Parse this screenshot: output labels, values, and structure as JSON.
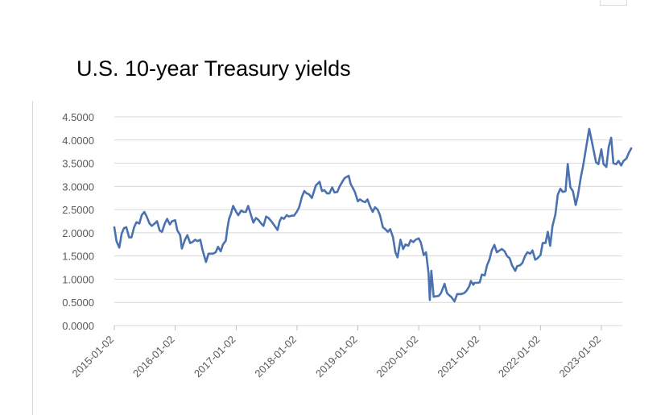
{
  "chart_data": {
    "type": "line",
    "title": "U.S. 10-year Treasury yields",
    "xlabel": "",
    "ylabel": "",
    "ylim": [
      0,
      4.5
    ],
    "xlim": [
      "2015-01-02",
      "2023-06-30"
    ],
    "grid": true,
    "legend": "none",
    "y_ticks": [
      "0.0000",
      "0.5000",
      "1.0000",
      "1.5000",
      "2.0000",
      "2.5000",
      "3.0000",
      "3.5000",
      "4.0000",
      "4.5000"
    ],
    "x_ticks": [
      "2015-01-02",
      "2016-01-02",
      "2017-01-02",
      "2018-01-02",
      "2019-01-02",
      "2020-01-02",
      "2021-01-02",
      "2022-01-02",
      "2023-01-02"
    ],
    "series": [
      {
        "color": "#4a72b0",
        "points": [
          [
            "2015-01-02",
            2.12
          ],
          [
            "2015-01-15",
            1.82
          ],
          [
            "2015-02-01",
            1.68
          ],
          [
            "2015-02-15",
            1.98
          ],
          [
            "2015-03-01",
            2.1
          ],
          [
            "2015-03-15",
            2.12
          ],
          [
            "2015-04-01",
            1.9
          ],
          [
            "2015-04-15",
            1.9
          ],
          [
            "2015-05-01",
            2.12
          ],
          [
            "2015-05-15",
            2.23
          ],
          [
            "2015-06-01",
            2.2
          ],
          [
            "2015-06-15",
            2.38
          ],
          [
            "2015-07-01",
            2.45
          ],
          [
            "2015-07-15",
            2.35
          ],
          [
            "2015-08-01",
            2.2
          ],
          [
            "2015-08-15",
            2.15
          ],
          [
            "2015-09-01",
            2.2
          ],
          [
            "2015-09-15",
            2.25
          ],
          [
            "2015-10-01",
            2.05
          ],
          [
            "2015-10-15",
            2.02
          ],
          [
            "2015-11-01",
            2.2
          ],
          [
            "2015-11-15",
            2.3
          ],
          [
            "2015-12-01",
            2.18
          ],
          [
            "2015-12-15",
            2.25
          ],
          [
            "2016-01-02",
            2.27
          ],
          [
            "2016-01-15",
            2.05
          ],
          [
            "2016-02-01",
            1.95
          ],
          [
            "2016-02-11",
            1.66
          ],
          [
            "2016-03-01",
            1.85
          ],
          [
            "2016-03-15",
            1.95
          ],
          [
            "2016-04-01",
            1.78
          ],
          [
            "2016-04-15",
            1.8
          ],
          [
            "2016-05-01",
            1.85
          ],
          [
            "2016-05-15",
            1.82
          ],
          [
            "2016-06-01",
            1.85
          ],
          [
            "2016-06-15",
            1.62
          ],
          [
            "2016-07-05",
            1.37
          ],
          [
            "2016-07-20",
            1.55
          ],
          [
            "2016-08-01",
            1.55
          ],
          [
            "2016-08-15",
            1.55
          ],
          [
            "2016-09-01",
            1.58
          ],
          [
            "2016-09-15",
            1.7
          ],
          [
            "2016-10-01",
            1.6
          ],
          [
            "2016-10-15",
            1.75
          ],
          [
            "2016-11-01",
            1.83
          ],
          [
            "2016-11-09",
            2.07
          ],
          [
            "2016-11-20",
            2.3
          ],
          [
            "2016-12-01",
            2.4
          ],
          [
            "2016-12-15",
            2.58
          ],
          [
            "2017-01-02",
            2.45
          ],
          [
            "2017-01-15",
            2.38
          ],
          [
            "2017-02-01",
            2.48
          ],
          [
            "2017-02-15",
            2.45
          ],
          [
            "2017-03-01",
            2.45
          ],
          [
            "2017-03-15",
            2.58
          ],
          [
            "2017-04-01",
            2.38
          ],
          [
            "2017-04-15",
            2.22
          ],
          [
            "2017-05-01",
            2.32
          ],
          [
            "2017-05-15",
            2.28
          ],
          [
            "2017-06-01",
            2.2
          ],
          [
            "2017-06-15",
            2.15
          ],
          [
            "2017-07-01",
            2.35
          ],
          [
            "2017-07-15",
            2.32
          ],
          [
            "2017-08-01",
            2.25
          ],
          [
            "2017-08-15",
            2.18
          ],
          [
            "2017-09-07",
            2.06
          ],
          [
            "2017-09-20",
            2.25
          ],
          [
            "2017-10-01",
            2.33
          ],
          [
            "2017-10-15",
            2.3
          ],
          [
            "2017-11-01",
            2.38
          ],
          [
            "2017-11-15",
            2.35
          ],
          [
            "2017-12-01",
            2.37
          ],
          [
            "2017-12-15",
            2.37
          ],
          [
            "2018-01-02",
            2.46
          ],
          [
            "2018-01-15",
            2.55
          ],
          [
            "2018-02-01",
            2.78
          ],
          [
            "2018-02-15",
            2.9
          ],
          [
            "2018-03-01",
            2.85
          ],
          [
            "2018-03-15",
            2.83
          ],
          [
            "2018-04-01",
            2.75
          ],
          [
            "2018-04-25",
            3.02
          ],
          [
            "2018-05-17",
            3.1
          ],
          [
            "2018-06-01",
            2.9
          ],
          [
            "2018-06-15",
            2.92
          ],
          [
            "2018-07-01",
            2.85
          ],
          [
            "2018-07-15",
            2.85
          ],
          [
            "2018-08-01",
            2.98
          ],
          [
            "2018-08-15",
            2.87
          ],
          [
            "2018-09-01",
            2.88
          ],
          [
            "2018-09-15",
            3.0
          ],
          [
            "2018-10-01",
            3.1
          ],
          [
            "2018-10-15",
            3.18
          ],
          [
            "2018-11-08",
            3.23
          ],
          [
            "2018-11-20",
            3.05
          ],
          [
            "2018-12-01",
            2.98
          ],
          [
            "2018-12-15",
            2.88
          ],
          [
            "2019-01-02",
            2.68
          ],
          [
            "2019-01-15",
            2.72
          ],
          [
            "2019-02-01",
            2.68
          ],
          [
            "2019-02-15",
            2.66
          ],
          [
            "2019-03-01",
            2.72
          ],
          [
            "2019-03-15",
            2.58
          ],
          [
            "2019-04-01",
            2.45
          ],
          [
            "2019-04-15",
            2.55
          ],
          [
            "2019-05-01",
            2.5
          ],
          [
            "2019-05-15",
            2.38
          ],
          [
            "2019-06-01",
            2.12
          ],
          [
            "2019-06-15",
            2.08
          ],
          [
            "2019-07-01",
            2.02
          ],
          [
            "2019-07-15",
            2.08
          ],
          [
            "2019-08-01",
            1.9
          ],
          [
            "2019-08-15",
            1.58
          ],
          [
            "2019-08-28",
            1.47
          ],
          [
            "2019-09-15",
            1.85
          ],
          [
            "2019-10-01",
            1.65
          ],
          [
            "2019-10-15",
            1.75
          ],
          [
            "2019-11-01",
            1.72
          ],
          [
            "2019-11-15",
            1.84
          ],
          [
            "2019-12-01",
            1.8
          ],
          [
            "2019-12-15",
            1.85
          ],
          [
            "2020-01-02",
            1.88
          ],
          [
            "2020-01-15",
            1.79
          ],
          [
            "2020-02-01",
            1.52
          ],
          [
            "2020-02-15",
            1.58
          ],
          [
            "2020-03-01",
            1.13
          ],
          [
            "2020-03-09",
            0.55
          ],
          [
            "2020-03-18",
            1.18
          ],
          [
            "2020-04-01",
            0.62
          ],
          [
            "2020-04-15",
            0.63
          ],
          [
            "2020-05-01",
            0.64
          ],
          [
            "2020-05-15",
            0.7
          ],
          [
            "2020-06-05",
            0.9
          ],
          [
            "2020-06-20",
            0.7
          ],
          [
            "2020-07-01",
            0.66
          ],
          [
            "2020-07-15",
            0.62
          ],
          [
            "2020-08-04",
            0.52
          ],
          [
            "2020-08-20",
            0.68
          ],
          [
            "2020-09-01",
            0.68
          ],
          [
            "2020-09-15",
            0.68
          ],
          [
            "2020-10-01",
            0.7
          ],
          [
            "2020-10-15",
            0.75
          ],
          [
            "2020-11-01",
            0.85
          ],
          [
            "2020-11-10",
            0.96
          ],
          [
            "2020-11-25",
            0.88
          ],
          [
            "2020-12-01",
            0.92
          ],
          [
            "2020-12-15",
            0.92
          ],
          [
            "2021-01-02",
            0.93
          ],
          [
            "2021-01-15",
            1.1
          ],
          [
            "2021-02-01",
            1.08
          ],
          [
            "2021-02-15",
            1.3
          ],
          [
            "2021-03-01",
            1.42
          ],
          [
            "2021-03-15",
            1.62
          ],
          [
            "2021-03-31",
            1.74
          ],
          [
            "2021-04-15",
            1.58
          ],
          [
            "2021-05-01",
            1.62
          ],
          [
            "2021-05-15",
            1.65
          ],
          [
            "2021-06-01",
            1.6
          ],
          [
            "2021-06-15",
            1.5
          ],
          [
            "2021-07-01",
            1.45
          ],
          [
            "2021-07-15",
            1.3
          ],
          [
            "2021-08-03",
            1.18
          ],
          [
            "2021-08-15",
            1.28
          ],
          [
            "2021-09-01",
            1.3
          ],
          [
            "2021-09-15",
            1.35
          ],
          [
            "2021-10-01",
            1.5
          ],
          [
            "2021-10-15",
            1.58
          ],
          [
            "2021-11-01",
            1.55
          ],
          [
            "2021-11-15",
            1.62
          ],
          [
            "2021-12-01",
            1.42
          ],
          [
            "2021-12-15",
            1.45
          ],
          [
            "2022-01-02",
            1.52
          ],
          [
            "2022-01-15",
            1.78
          ],
          [
            "2022-02-01",
            1.78
          ],
          [
            "2022-02-15",
            2.02
          ],
          [
            "2022-03-01",
            1.72
          ],
          [
            "2022-03-15",
            2.15
          ],
          [
            "2022-04-01",
            2.4
          ],
          [
            "2022-04-15",
            2.82
          ],
          [
            "2022-05-01",
            2.95
          ],
          [
            "2022-05-15",
            2.88
          ],
          [
            "2022-06-01",
            2.9
          ],
          [
            "2022-06-14",
            3.48
          ],
          [
            "2022-06-30",
            2.98
          ],
          [
            "2022-07-15",
            2.9
          ],
          [
            "2022-08-01",
            2.6
          ],
          [
            "2022-08-15",
            2.82
          ],
          [
            "2022-09-01",
            3.2
          ],
          [
            "2022-09-15",
            3.45
          ],
          [
            "2022-10-01",
            3.8
          ],
          [
            "2022-10-21",
            4.24
          ],
          [
            "2022-11-01",
            4.05
          ],
          [
            "2022-11-15",
            3.8
          ],
          [
            "2022-12-01",
            3.52
          ],
          [
            "2022-12-15",
            3.48
          ],
          [
            "2023-01-02",
            3.8
          ],
          [
            "2023-01-15",
            3.48
          ],
          [
            "2023-02-01",
            3.42
          ],
          [
            "2023-02-15",
            3.85
          ],
          [
            "2023-03-02",
            4.05
          ],
          [
            "2023-03-15",
            3.5
          ],
          [
            "2023-04-01",
            3.48
          ],
          [
            "2023-04-15",
            3.55
          ],
          [
            "2023-05-01",
            3.45
          ],
          [
            "2023-05-15",
            3.55
          ],
          [
            "2023-06-01",
            3.6
          ],
          [
            "2023-06-15",
            3.72
          ],
          [
            "2023-06-30",
            3.82
          ]
        ]
      }
    ]
  }
}
